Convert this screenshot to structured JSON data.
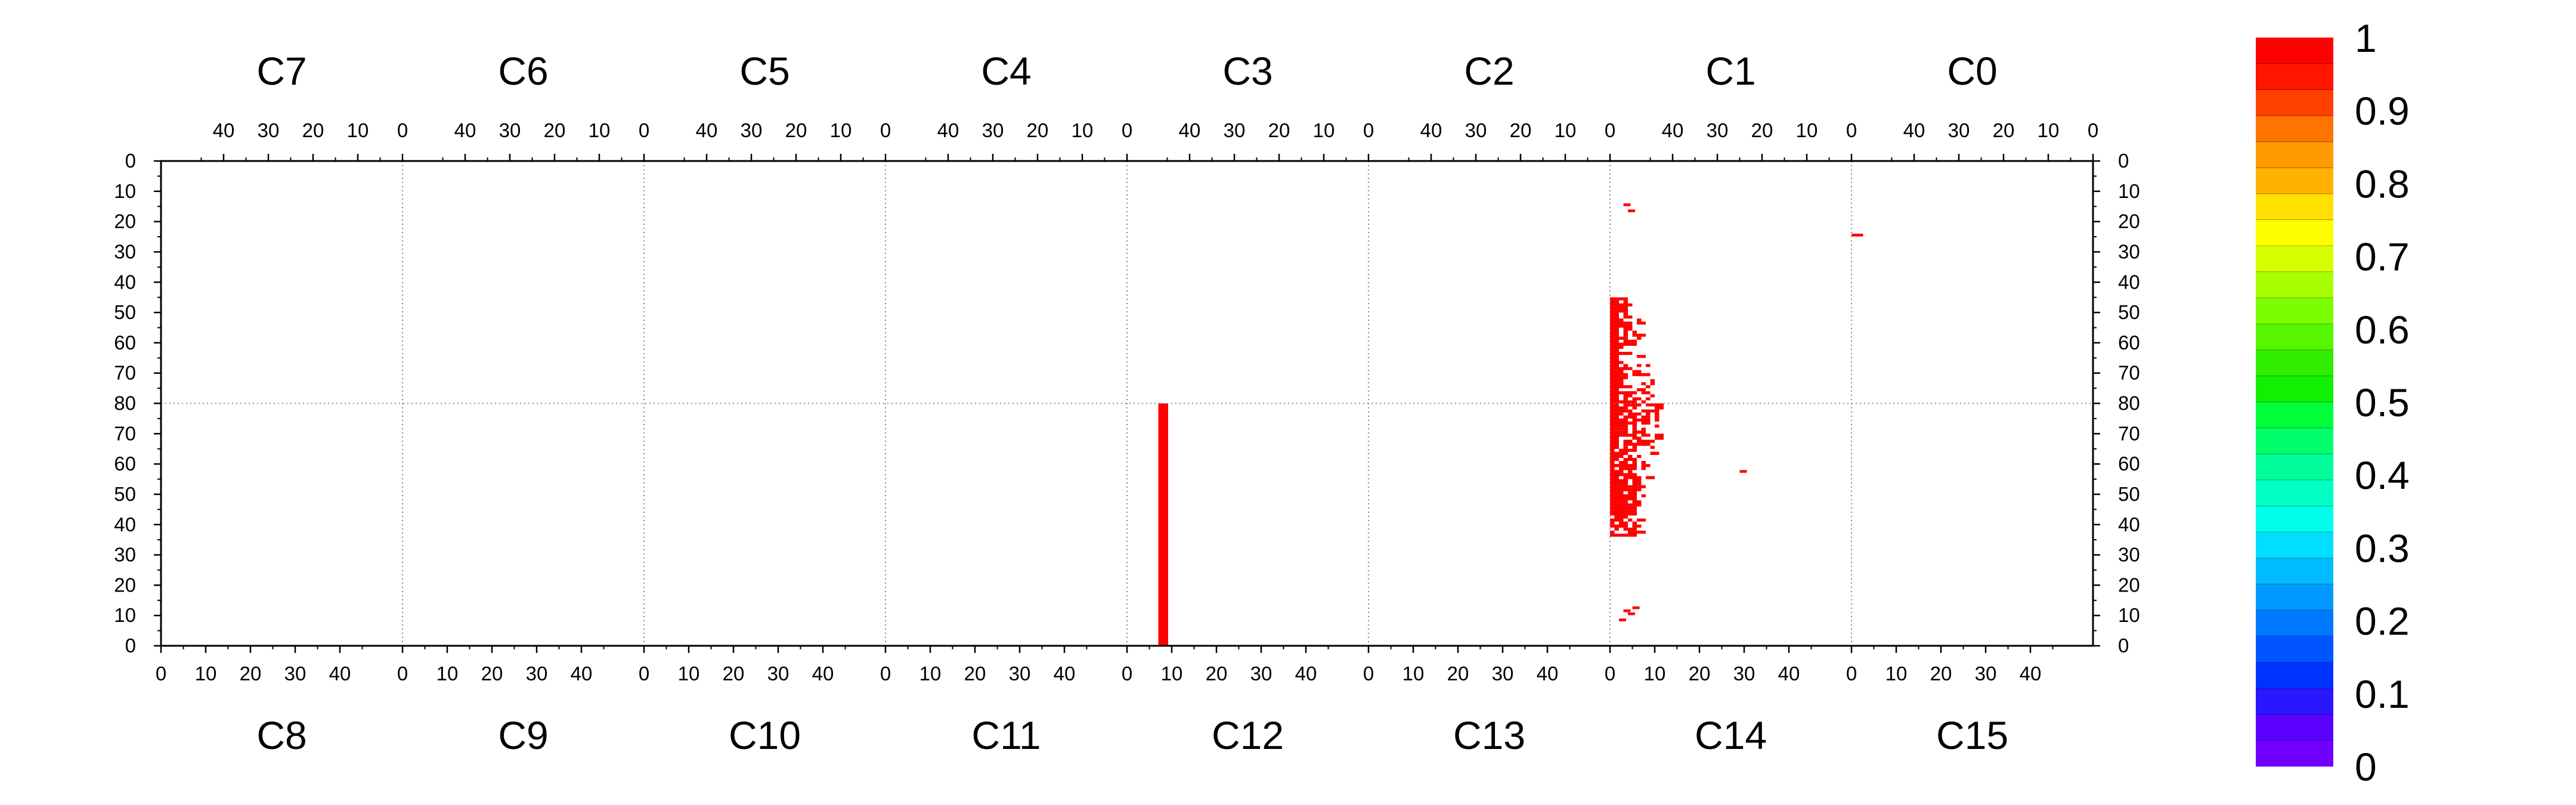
{
  "chart_data": {
    "type": "heatmap",
    "title": "",
    "xlabel": "",
    "ylabel": "",
    "chips": {
      "top_labels": [
        "C7",
        "C6",
        "C5",
        "C4",
        "C3",
        "C2",
        "C1",
        "C0"
      ],
      "bottom_labels": [
        "C8",
        "C9",
        "C10",
        "C11",
        "C12",
        "C13",
        "C14",
        "C15"
      ],
      "cols_per_chip": 54,
      "rows_per_half": 80
    },
    "x_ticks_top": [
      "40",
      "30",
      "20",
      "10",
      "0"
    ],
    "x_ticks_bottom": [
      "0",
      "10",
      "20",
      "30",
      "40"
    ],
    "y_ticks_top_half": [
      "0",
      "10",
      "20",
      "30",
      "40",
      "50",
      "60",
      "70",
      "80"
    ],
    "y_ticks_bottom_half": [
      "70",
      "60",
      "50",
      "40",
      "30",
      "20",
      "10",
      "0"
    ],
    "colorbar": {
      "min": 0,
      "max": 1,
      "tick_labels": [
        "1",
        "0.9",
        "0.8",
        "0.7",
        "0.6",
        "0.5",
        "0.4",
        "0.3",
        "0.2",
        "0.1",
        "0"
      ],
      "colors_low_to_high": [
        "#6f00ff",
        "#5a00ff",
        "#2a16ff",
        "#0033ff",
        "#0055ff",
        "#0077ff",
        "#0099ff",
        "#00bbff",
        "#00dfff",
        "#00ffea",
        "#00ffc5",
        "#00ff9a",
        "#00ff6a",
        "#00ff3a",
        "#10f000",
        "#2fee00",
        "#56f500",
        "#7bff00",
        "#a8ff00",
        "#d7ff00",
        "#ffff00",
        "#ffe000",
        "#ffb200",
        "#ff9a00",
        "#ff7300",
        "#ff4000",
        "#ff1500",
        "#ff0000"
      ]
    },
    "hit_value": 1,
    "hit_color": "#ff0000",
    "features": [
      {
        "kind": "column",
        "chip": "C12",
        "col": 7,
        "row_from": 0,
        "row_to": 80,
        "value": 1
      },
      {
        "kind": "cluster",
        "chip": "C1",
        "col_center": 53,
        "spread": 10,
        "row_from": 45,
        "row_to": 80,
        "value": 1
      },
      {
        "kind": "cluster",
        "chip": "C14",
        "col_center": 1,
        "spread": 10,
        "row_from": 36,
        "row_to": 80,
        "value": 1
      },
      {
        "kind": "isolated",
        "chip": "C1",
        "col": 50,
        "row": 14,
        "value": 1
      },
      {
        "kind": "isolated",
        "chip": "C1",
        "col": 49,
        "row": 16,
        "value": 1
      },
      {
        "kind": "isolated",
        "chip": "C0",
        "col": 53,
        "row": 24,
        "value": 1
      },
      {
        "kind": "isolated",
        "chip": "C0",
        "col": 52,
        "row": 24,
        "value": 1
      },
      {
        "kind": "isolated",
        "chip": "C14",
        "col": 29,
        "row": 57,
        "value": 1
      },
      {
        "kind": "isolated",
        "chip": "C14",
        "col": 3,
        "row": 11,
        "value": 1
      },
      {
        "kind": "isolated",
        "chip": "C14",
        "col": 4,
        "row": 10,
        "value": 1
      },
      {
        "kind": "isolated",
        "chip": "C14",
        "col": 5,
        "row": 12,
        "value": 1
      },
      {
        "kind": "isolated",
        "chip": "C14",
        "col": 2,
        "row": 8,
        "value": 1
      }
    ]
  }
}
